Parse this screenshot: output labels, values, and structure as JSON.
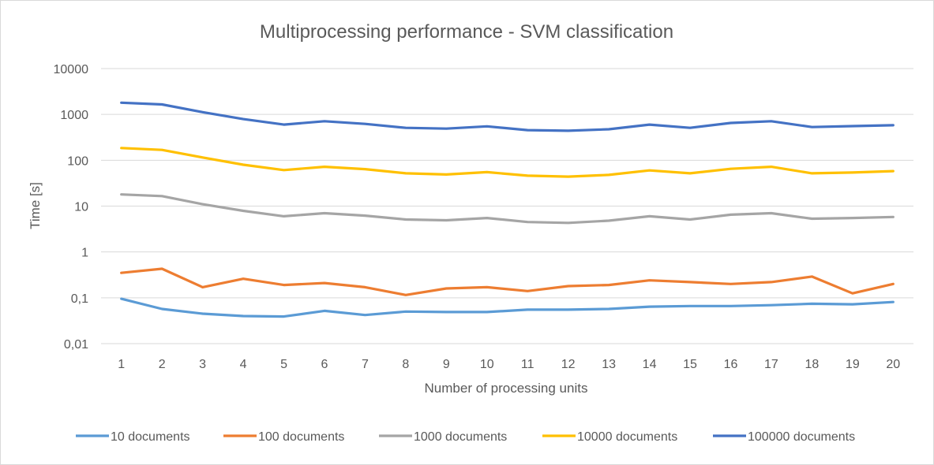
{
  "chart_data": {
    "type": "line",
    "title": "Multiprocessing performance - SVM classification",
    "xlabel": "Number of processing units",
    "ylabel": "Time [s]",
    "yscale": "log",
    "ylim": [
      0.01,
      10000
    ],
    "y_ticks": [
      {
        "value": 10000,
        "label": "10000"
      },
      {
        "value": 1000,
        "label": "1000"
      },
      {
        "value": 100,
        "label": "100"
      },
      {
        "value": 10,
        "label": "10"
      },
      {
        "value": 1,
        "label": "1"
      },
      {
        "value": 0.1,
        "label": "0,1"
      },
      {
        "value": 0.01,
        "label": "0,01"
      }
    ],
    "grid": true,
    "legend_position": "bottom",
    "x": [
      "1",
      "2",
      "3",
      "4",
      "5",
      "6",
      "7",
      "8",
      "9",
      "10",
      "11",
      "12",
      "13",
      "14",
      "15",
      "16",
      "17",
      "18",
      "19",
      "20"
    ],
    "series": [
      {
        "name": "10 documents",
        "color": "#5b9bd5",
        "values": [
          0.095,
          0.057,
          0.045,
          0.04,
          0.039,
          0.052,
          0.042,
          0.05,
          0.049,
          0.049,
          0.055,
          0.055,
          0.057,
          0.064,
          0.066,
          0.066,
          0.069,
          0.074,
          0.072,
          0.081
        ]
      },
      {
        "name": "100 documents",
        "color": "#ed7d31",
        "values": [
          0.35,
          0.43,
          0.17,
          0.26,
          0.19,
          0.21,
          0.17,
          0.115,
          0.16,
          0.17,
          0.14,
          0.18,
          0.19,
          0.24,
          0.22,
          0.2,
          0.22,
          0.29,
          0.125,
          0.2
        ]
      },
      {
        "name": "1000 documents",
        "color": "#a5a5a5",
        "values": [
          18,
          16.5,
          11,
          7.9,
          6.0,
          7.0,
          6.2,
          5.1,
          4.9,
          5.5,
          4.5,
          4.3,
          4.8,
          6.0,
          5.1,
          6.5,
          7.0,
          5.3,
          5.5,
          5.8
        ]
      },
      {
        "name": "10000 documents",
        "color": "#ffc000",
        "values": [
          185,
          168,
          115,
          80,
          61,
          72,
          64,
          52,
          49,
          55,
          46,
          44,
          48,
          60,
          52,
          65,
          72,
          52,
          54,
          58
        ]
      },
      {
        "name": "100000 documents",
        "color": "#4472c4",
        "values": [
          1800,
          1650,
          1120,
          790,
          600,
          710,
          620,
          510,
          490,
          550,
          455,
          440,
          475,
          600,
          510,
          650,
          710,
          530,
          555,
          580
        ]
      }
    ]
  }
}
